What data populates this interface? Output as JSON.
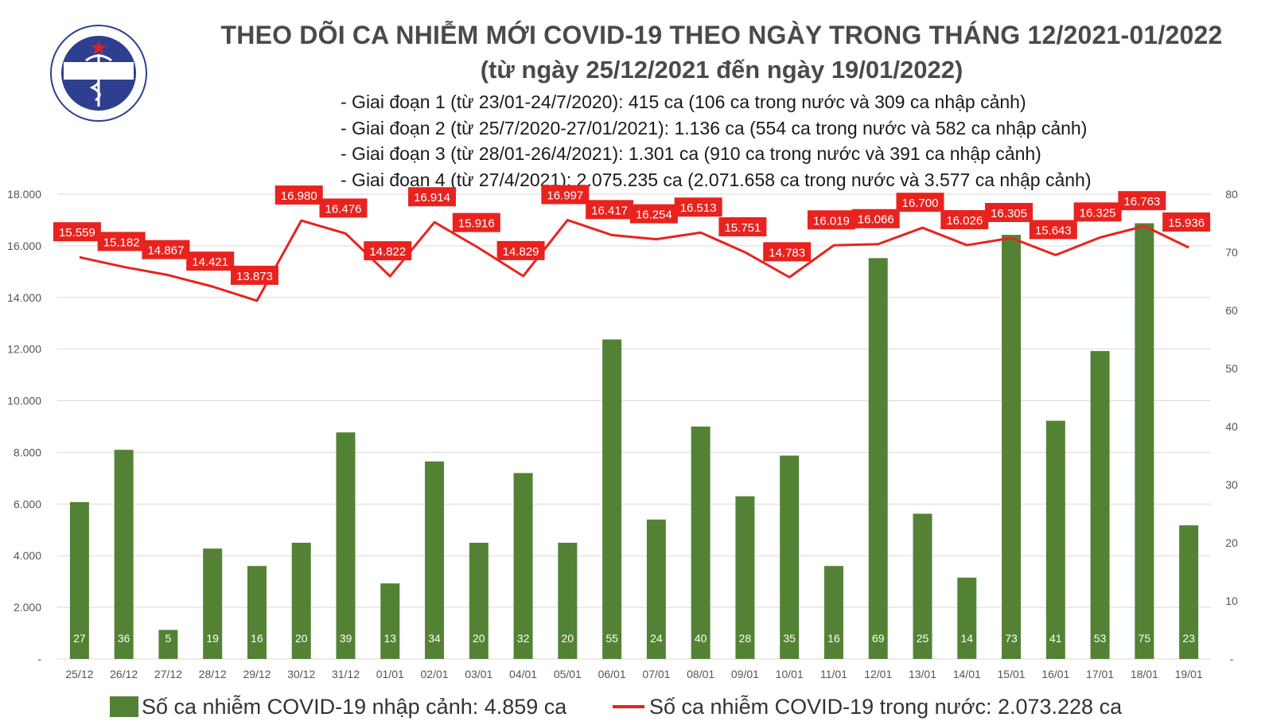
{
  "header": {
    "title": "THEO DÕI CA NHIỄM MỚI COVID-19 THEO NGÀY TRONG THÁNG 12/2021-01/2022",
    "subtitle": "(từ ngày 25/12/2021 đến ngày 19/01/2022)",
    "notes": [
      "- Giai đoạn 1 (từ 23/01-24/7/2020): 415 ca (106 ca trong nước và 309 ca nhập cảnh)",
      "- Giai đoạn 2 (từ 25/7/2020-27/01/2021): 1.136 ca (554 ca trong nước và 582 ca nhập cảnh)",
      "- Giai đoạn 3 (từ 28/01-26/4/2021): 1.301 ca (910 ca trong nước và 391 ca nhập cảnh)",
      "- Giai đoạn 4 (từ 27/4/2021): 2.075.235 ca (2.071.658 ca trong nước và 3.577 ca nhập cảnh)"
    ]
  },
  "logo": {
    "top_text": "BỘ Y TẾ",
    "bottom_text": "MINISTRY OF HEALTH"
  },
  "chart_data": {
    "type": "bar",
    "categories": [
      "25/12",
      "26/12",
      "27/12",
      "28/12",
      "29/12",
      "30/12",
      "31/12",
      "01/01",
      "02/01",
      "03/01",
      "04/01",
      "05/01",
      "06/01",
      "07/01",
      "08/01",
      "09/01",
      "10/01",
      "11/01",
      "12/01",
      "13/01",
      "14/01",
      "15/01",
      "16/01",
      "17/01",
      "18/01",
      "19/01"
    ],
    "series": [
      {
        "name": "Số ca nhiễm COVID-19 nhập cảnh: 4.859 ca",
        "type": "bar",
        "axis": "right",
        "color": "#548235",
        "values": [
          27,
          36,
          5,
          19,
          16,
          20,
          39,
          13,
          34,
          20,
          32,
          20,
          55,
          24,
          40,
          28,
          35,
          16,
          69,
          25,
          14,
          73,
          41,
          53,
          75,
          23
        ]
      },
      {
        "name": "Số ca nhiễm COVID-19 trong nước: 2.073.228 ca",
        "type": "line",
        "axis": "left",
        "color": "#e8231f",
        "values": [
          15559,
          15182,
          14867,
          14421,
          13873,
          16980,
          16476,
          14822,
          16914,
          15916,
          14829,
          16997,
          16417,
          16254,
          16513,
          15751,
          14783,
          16019,
          16066,
          16700,
          16026,
          16305,
          15643,
          16325,
          16763,
          15936
        ],
        "labels": [
          "15.559",
          "15.182",
          "14.867",
          "14.421",
          "13.873",
          "16.980",
          "16.476",
          "14.822",
          "16.914",
          "15.916",
          "14.829",
          "16.997",
          "16.417",
          "16.254",
          "16.513",
          "15.751",
          "14.783",
          "16.019",
          "16.066",
          "16.700",
          "16.026",
          "16.305",
          "15.643",
          "16.325",
          "16.763",
          "15.936"
        ]
      }
    ],
    "y_left": {
      "range": [
        0,
        18000
      ],
      "ticks": [
        "-",
        "2.000",
        "4.000",
        "6.000",
        "8.000",
        "10.000",
        "12.000",
        "14.000",
        "16.000",
        "18.000"
      ]
    },
    "y_right": {
      "range": [
        0,
        80
      ],
      "ticks": [
        "-",
        "10",
        "20",
        "30",
        "40",
        "50",
        "60",
        "70",
        "80"
      ]
    },
    "grid": true,
    "legend_position": "bottom"
  },
  "colors": {
    "bar": "#548235",
    "line": "#e8231f",
    "label_box": "#e8231f",
    "title": "#4a4a4a"
  }
}
